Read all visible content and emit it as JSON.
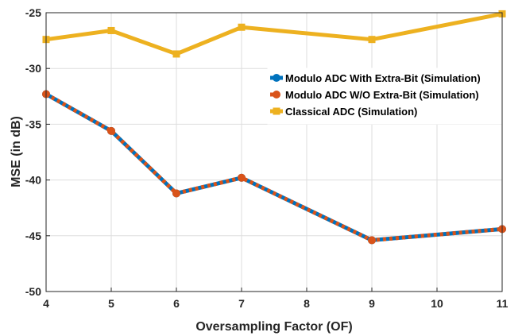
{
  "chart_data": {
    "type": "line",
    "title": "",
    "xlabel": "Oversampling Factor (OF)",
    "ylabel": "MSE (in dB)",
    "xlim": [
      4,
      11
    ],
    "ylim": [
      -50,
      -25
    ],
    "xticks": [
      4,
      5,
      6,
      7,
      8,
      9,
      10,
      11
    ],
    "yticks": [
      -25,
      -30,
      -35,
      -40,
      -45,
      -50
    ],
    "grid": true,
    "legend_position": "upper-right",
    "series": [
      {
        "name": "Modulo ADC With Extra-Bit (Simulation)",
        "color": "#0072BD",
        "marker": "circle",
        "x": [
          4,
          5,
          6,
          7,
          9,
          11
        ],
        "y": [
          -32.3,
          -35.6,
          -41.2,
          -39.8,
          -45.4,
          -44.4
        ]
      },
      {
        "name": "Modulo ADC W/O Extra-Bit (Simulation)",
        "color": "#D95319",
        "marker": "circle",
        "dashed": true,
        "x": [
          4,
          5,
          6,
          7,
          9,
          11
        ],
        "y": [
          -32.3,
          -35.6,
          -41.2,
          -39.8,
          -45.4,
          -44.4
        ]
      },
      {
        "name": "Classical ADC (Simulation)",
        "color": "#EDB120",
        "marker": "square",
        "x": [
          4,
          5,
          6,
          7,
          9,
          11
        ],
        "y": [
          -27.4,
          -26.6,
          -28.7,
          -26.3,
          -27.4,
          -25.1
        ]
      }
    ]
  }
}
